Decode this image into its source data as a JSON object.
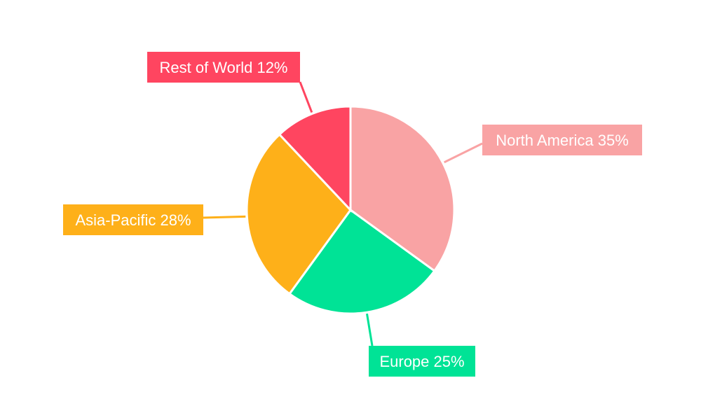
{
  "chart_data": {
    "type": "pie",
    "title": "",
    "start_angle": "top, clockwise",
    "categories": [
      "North America",
      "Europe",
      "Asia-Pacific",
      "Rest of World"
    ],
    "values": [
      35,
      25,
      28,
      12
    ],
    "labels": [
      "North America 35%",
      "Europe 25%",
      "Asia-Pacific 28%",
      "Rest of World 12%"
    ],
    "colors": [
      "#F9A3A4",
      "#00E396",
      "#FEB019",
      "#FF4560"
    ],
    "legend": "none"
  }
}
